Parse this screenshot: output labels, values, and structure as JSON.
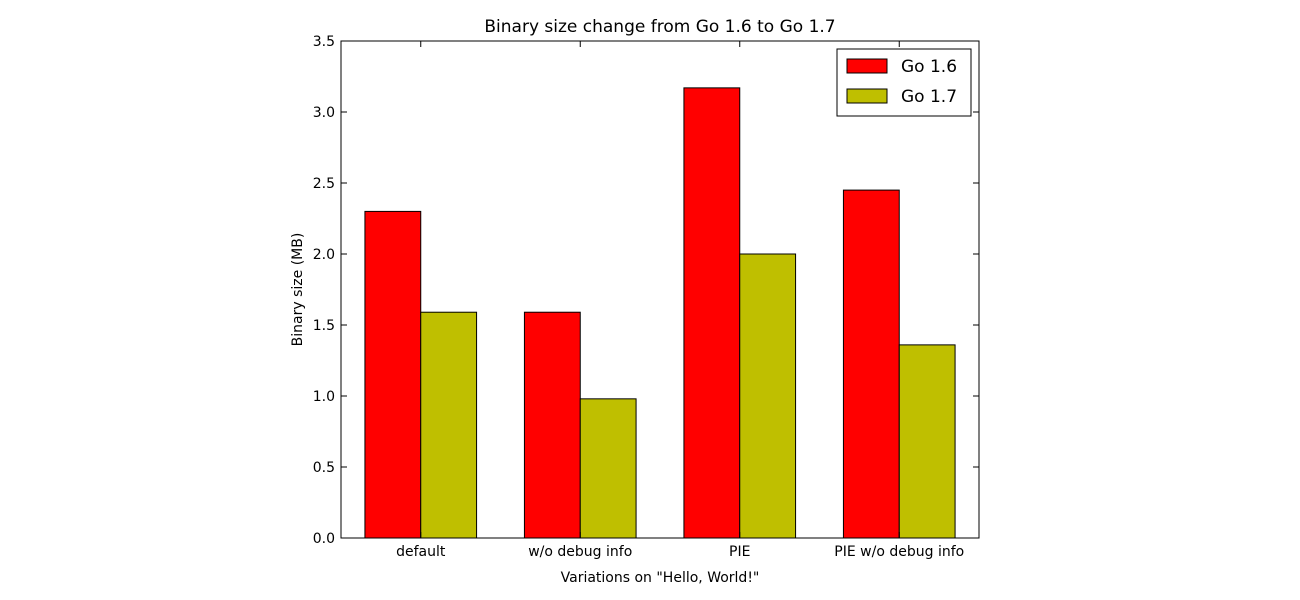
{
  "chart_data": {
    "type": "bar",
    "title": "Binary size change from Go 1.6 to Go 1.7",
    "xlabel": "Variations on \"Hello, World!\"",
    "ylabel": "Binary size (MB)",
    "categories": [
      "default",
      "w/o debug info",
      "PIE",
      "PIE w/o debug info"
    ],
    "series": [
      {
        "name": "Go 1.6",
        "color": "#ff0000",
        "values": [
          2.3,
          1.59,
          3.17,
          2.45
        ]
      },
      {
        "name": "Go 1.7",
        "color": "#bfbf00",
        "values": [
          1.59,
          0.98,
          2.0,
          1.36
        ]
      }
    ],
    "ylim": [
      0,
      3.5
    ],
    "yticks": [
      "0.0",
      "0.5",
      "1.0",
      "1.5",
      "2.0",
      "2.5",
      "3.0",
      "3.5"
    ],
    "grid": false,
    "legend_position": "top-right"
  }
}
